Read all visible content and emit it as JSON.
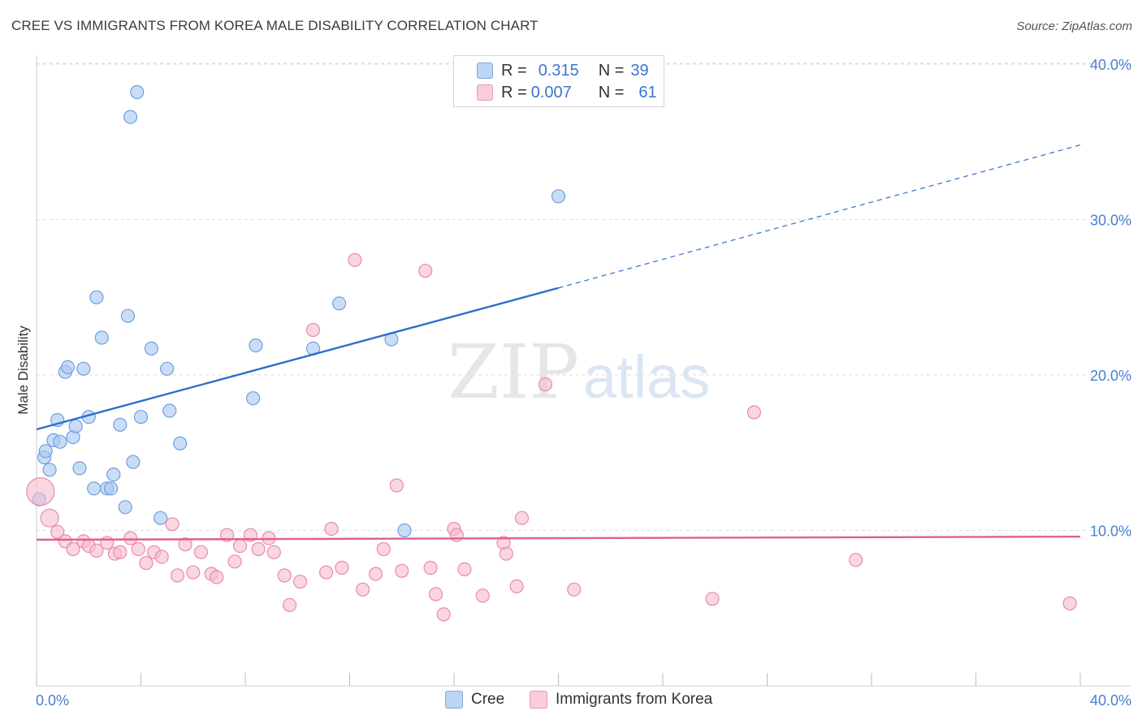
{
  "title": "CREE VS IMMIGRANTS FROM KOREA MALE DISABILITY CORRELATION CHART",
  "source": "Source: ZipAtlas.com",
  "colors": {
    "cree_fill": "#a9c8f0",
    "cree_stroke": "#6f9fde",
    "cree_line": "#2e6fcc",
    "korea_fill": "#f6bdd0",
    "korea_stroke": "#e98aaa",
    "korea_line": "#e0608a",
    "grid": "#dddddd",
    "tick_text": "#4a7fd0"
  },
  "legend": {
    "rows": [
      {
        "r_label": "R =",
        "r_value": "0.315",
        "n_label": "N =",
        "n_value": "39"
      },
      {
        "r_label": "R =",
        "r_value": "0.007",
        "n_label": "N =",
        "n_value": "61"
      }
    ]
  },
  "bottom_legend": [
    "Cree",
    "Immigrants from Korea"
  ],
  "watermark": {
    "zip": "ZIP",
    "atlas": "atlas"
  },
  "chart_data": {
    "type": "scatter",
    "title": "CREE VS IMMIGRANTS FROM KOREA MALE DISABILITY CORRELATION CHART",
    "xlabel": "",
    "ylabel": "Male Disability",
    "xlim": [
      0,
      40
    ],
    "ylim": [
      0,
      41.5
    ],
    "x_tick_labels": [
      "0.0%",
      "40.0%"
    ],
    "y_ticks": [
      10,
      20,
      30,
      40
    ],
    "y_tick_labels": [
      "10.0%",
      "20.0%",
      "30.0%",
      "40.0%"
    ],
    "series": [
      {
        "name": "Cree",
        "R": 0.315,
        "N": 39,
        "trend": {
          "x0": 0,
          "y0": 16.5,
          "x1": 20,
          "y1": 25.6,
          "dashed_to_x": 40,
          "dashed_to_y": 34.8
        },
        "points": [
          [
            0.1,
            12.0
          ],
          [
            0.3,
            14.7
          ],
          [
            0.35,
            15.1
          ],
          [
            0.5,
            13.9
          ],
          [
            0.65,
            15.8
          ],
          [
            0.8,
            17.1
          ],
          [
            0.9,
            15.7
          ],
          [
            1.1,
            20.2
          ],
          [
            1.2,
            20.5
          ],
          [
            1.4,
            16.0
          ],
          [
            1.5,
            16.7
          ],
          [
            1.65,
            14.0
          ],
          [
            1.8,
            20.4
          ],
          [
            2.0,
            17.3
          ],
          [
            2.2,
            12.7
          ],
          [
            2.3,
            25.0
          ],
          [
            2.5,
            22.4
          ],
          [
            2.7,
            12.7
          ],
          [
            2.85,
            12.7
          ],
          [
            2.95,
            13.6
          ],
          [
            3.2,
            16.8
          ],
          [
            3.4,
            11.5
          ],
          [
            3.5,
            23.8
          ],
          [
            3.6,
            36.6
          ],
          [
            3.7,
            14.4
          ],
          [
            3.85,
            38.2
          ],
          [
            4.0,
            17.3
          ],
          [
            4.4,
            21.7
          ],
          [
            4.75,
            10.8
          ],
          [
            5.0,
            20.4
          ],
          [
            5.1,
            17.7
          ],
          [
            5.5,
            15.6
          ],
          [
            8.3,
            18.5
          ],
          [
            8.4,
            21.9
          ],
          [
            10.6,
            21.7
          ],
          [
            11.6,
            24.6
          ],
          [
            13.6,
            22.3
          ],
          [
            14.1,
            10.0
          ],
          [
            20.0,
            31.5
          ]
        ]
      },
      {
        "name": "Immigrants from Korea",
        "R": 0.007,
        "N": 61,
        "trend": {
          "x0": 0,
          "y0": 9.4,
          "x1": 40,
          "y1": 9.6
        },
        "points": [
          [
            0.15,
            12.5
          ],
          [
            0.5,
            10.8
          ],
          [
            0.8,
            9.9
          ],
          [
            1.1,
            9.3
          ],
          [
            1.4,
            8.8
          ],
          [
            1.8,
            9.3
          ],
          [
            2.0,
            9.0
          ],
          [
            2.3,
            8.7
          ],
          [
            2.7,
            9.2
          ],
          [
            3.0,
            8.5
          ],
          [
            3.2,
            8.6
          ],
          [
            3.6,
            9.5
          ],
          [
            3.9,
            8.8
          ],
          [
            4.2,
            7.9
          ],
          [
            4.5,
            8.6
          ],
          [
            4.8,
            8.3
          ],
          [
            5.2,
            10.4
          ],
          [
            5.4,
            7.1
          ],
          [
            5.7,
            9.1
          ],
          [
            6.0,
            7.3
          ],
          [
            6.3,
            8.6
          ],
          [
            6.7,
            7.2
          ],
          [
            6.9,
            7.0
          ],
          [
            7.3,
            9.7
          ],
          [
            7.6,
            8.0
          ],
          [
            7.8,
            9.0
          ],
          [
            8.2,
            9.7
          ],
          [
            8.5,
            8.8
          ],
          [
            8.9,
            9.5
          ],
          [
            9.1,
            8.6
          ],
          [
            9.5,
            7.1
          ],
          [
            9.7,
            5.2
          ],
          [
            10.1,
            6.7
          ],
          [
            10.6,
            22.9
          ],
          [
            11.1,
            7.3
          ],
          [
            11.3,
            10.1
          ],
          [
            11.7,
            7.6
          ],
          [
            12.2,
            27.4
          ],
          [
            12.5,
            6.2
          ],
          [
            13.0,
            7.2
          ],
          [
            13.3,
            8.8
          ],
          [
            13.8,
            12.9
          ],
          [
            14.0,
            7.4
          ],
          [
            14.9,
            26.7
          ],
          [
            15.1,
            7.6
          ],
          [
            15.3,
            5.9
          ],
          [
            15.6,
            4.6
          ],
          [
            16.0,
            10.1
          ],
          [
            16.1,
            9.7
          ],
          [
            16.4,
            7.5
          ],
          [
            17.1,
            5.8
          ],
          [
            17.9,
            9.2
          ],
          [
            18.0,
            8.5
          ],
          [
            18.4,
            6.4
          ],
          [
            18.6,
            10.8
          ],
          [
            19.5,
            19.4
          ],
          [
            20.6,
            6.2
          ],
          [
            25.9,
            5.6
          ],
          [
            27.5,
            17.6
          ],
          [
            31.4,
            8.1
          ],
          [
            39.6,
            5.3
          ]
        ]
      }
    ]
  }
}
